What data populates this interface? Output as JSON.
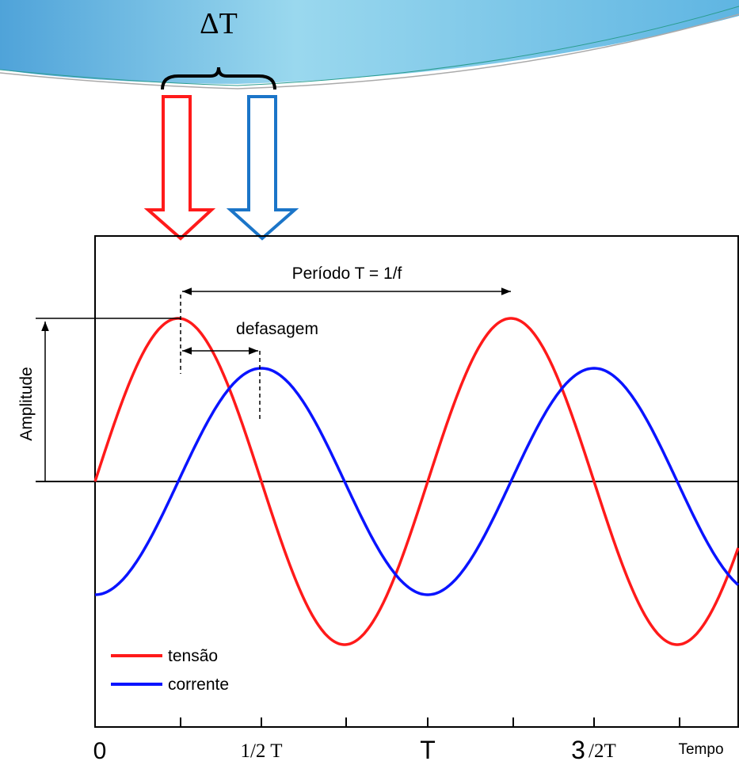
{
  "delta_label": "ΔT",
  "period_label": "Período T = 1/f",
  "phase_label": "defasagem",
  "amplitude_label": "Amplitude",
  "legend": [
    "tensão",
    "corrente"
  ],
  "x_labels": {
    "zero": "0",
    "half": "1/2 T",
    "full": "T",
    "three_num": "3",
    "three_rest": "/2T",
    "axis": "Tempo"
  }
}
